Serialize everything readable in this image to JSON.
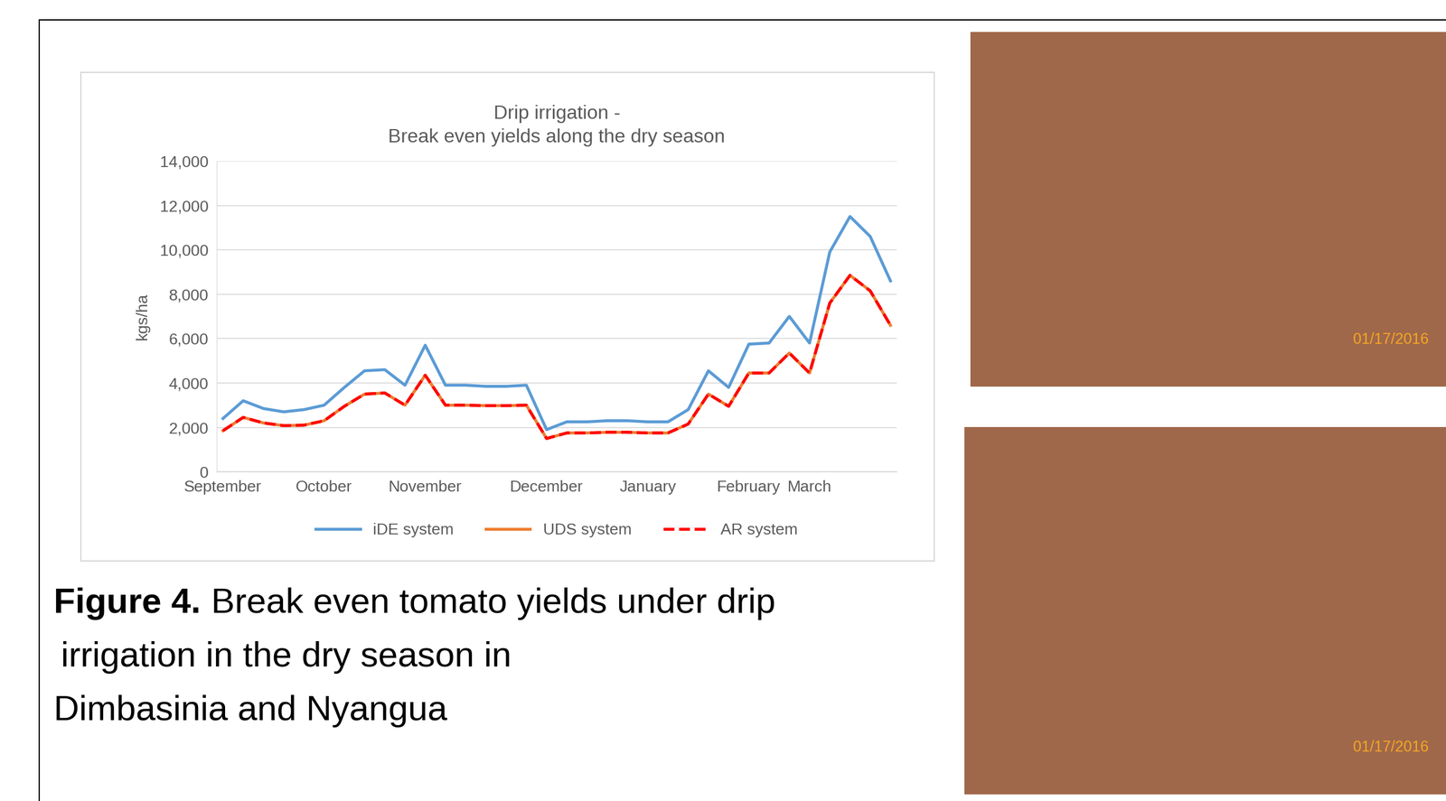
{
  "chart_data": {
    "type": "line",
    "title": "Drip irrigation -\nBreak even yields along the dry season",
    "y_label": "kgs/ha",
    "categories": [
      "September",
      null,
      null,
      null,
      null,
      "October",
      null,
      null,
      null,
      null,
      "November",
      null,
      null,
      null,
      null,
      null,
      "December",
      null,
      null,
      null,
      null,
      "January",
      null,
      null,
      null,
      null,
      "February",
      null,
      null,
      "March",
      null,
      null,
      null,
      null
    ],
    "series": [
      {
        "name": "iDE system",
        "color": "#5b9bd5",
        "line_style": "solid",
        "values": [
          2400,
          3200,
          2850,
          2700,
          2800,
          3000,
          3800,
          4550,
          4600,
          3900,
          5700,
          3900,
          3900,
          3850,
          3850,
          3900,
          1900,
          2250,
          2250,
          2300,
          2300,
          2250,
          2250,
          2800,
          4550,
          3800,
          5750,
          5800,
          7000,
          5800,
          9900,
          11500,
          10600,
          8600
        ]
      },
      {
        "name": "UDS system",
        "color": "#ed7d31",
        "line_style": "solid",
        "values": [
          1850,
          2450,
          2200,
          2080,
          2100,
          2300,
          2950,
          3500,
          3550,
          3000,
          4350,
          3000,
          3000,
          2980,
          2980,
          3000,
          1500,
          1750,
          1750,
          1780,
          1780,
          1750,
          1750,
          2150,
          3500,
          2950,
          4450,
          4450,
          5350,
          4450,
          7600,
          8850,
          8150,
          6600
        ]
      },
      {
        "name": "AR system",
        "color": "#ff0000",
        "line_style": "dashed",
        "values": [
          1850,
          2450,
          2200,
          2080,
          2100,
          2300,
          2950,
          3500,
          3550,
          3000,
          4350,
          3000,
          3000,
          2980,
          2980,
          3000,
          1500,
          1750,
          1750,
          1780,
          1780,
          1750,
          1750,
          2150,
          3500,
          2950,
          4450,
          4450,
          5350,
          4450,
          7600,
          8850,
          8150,
          6600
        ]
      }
    ],
    "ylim": [
      0,
      14000
    ],
    "yticks": [
      0,
      {
        "value": 2000,
        "label": "2,000"
      },
      {
        "value": 4000,
        "label": "4,000"
      },
      {
        "value": 6000,
        "label": "6,000"
      },
      {
        "value": 8000,
        "label": "8,000"
      },
      {
        "value": 10000,
        "label": "10,000"
      },
      {
        "value": 12000,
        "label": "12,000"
      },
      {
        "value": 14000,
        "label": "14,000"
      }
    ],
    "grid": true,
    "legend": "bottom",
    "caption": {
      "label": "Figure 4.",
      "lines": [
        "Break even tomato yields under drip",
        "irrigation in the dry season in",
        "Dimbasinia and Nyangua"
      ]
    },
    "photos": [
      {
        "date_stamp": "01/17/2016"
      },
      {
        "date_stamp": "01/17/2016"
      }
    ]
  }
}
